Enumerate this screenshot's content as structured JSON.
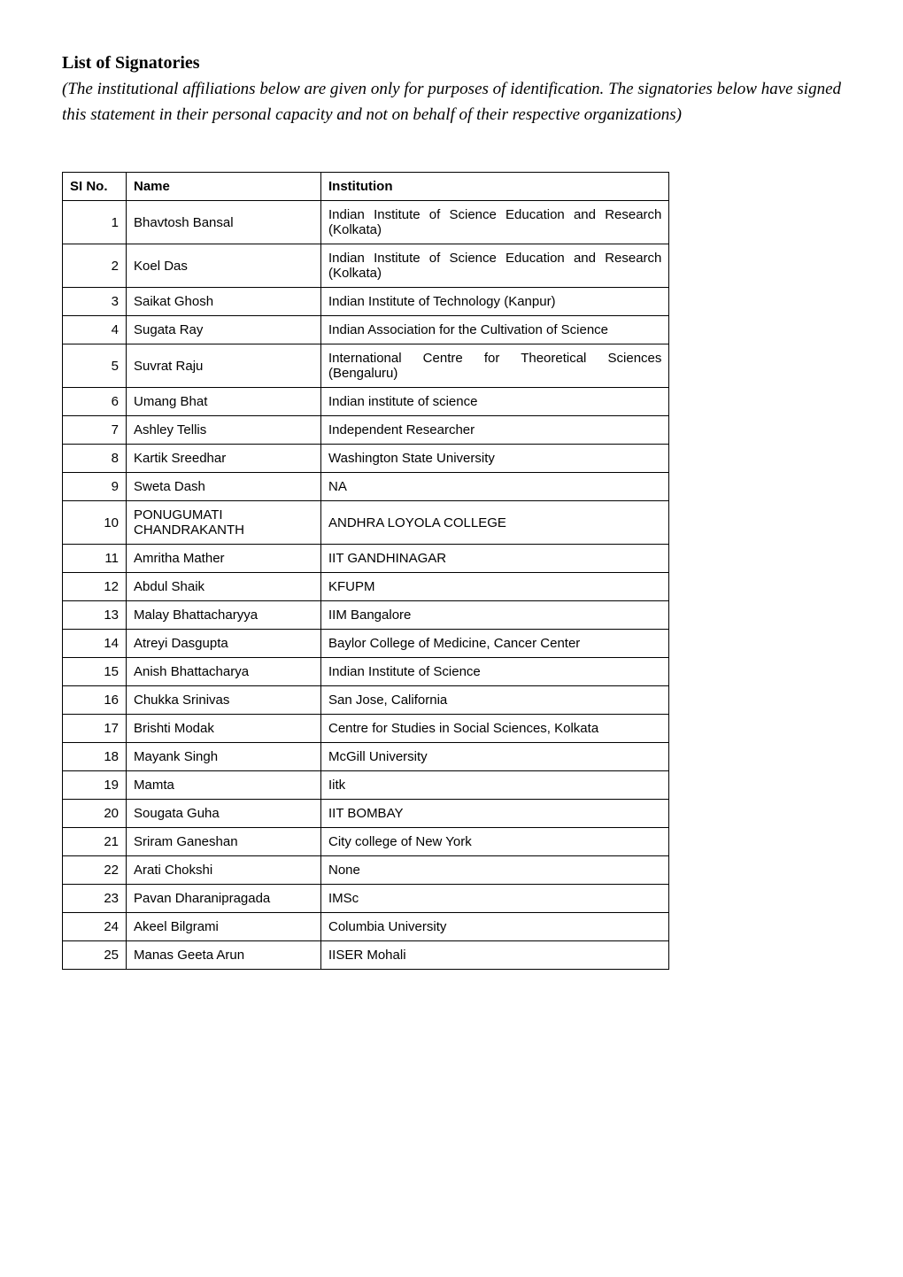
{
  "heading": "List of Signatories",
  "intro": "(The institutional affiliations below are given only for purposes of identification. The signatories below have signed this statement in their personal capacity and not on behalf of their respective organizations)",
  "table": {
    "columns": [
      "SI No.",
      "Name",
      "Institution"
    ],
    "rows": [
      [
        "1",
        "Bhavtosh Bansal",
        "Indian Institute of Science Education and Research (Kolkata)"
      ],
      [
        "2",
        "Koel Das",
        "Indian Institute of Science Education and Research (Kolkata)"
      ],
      [
        "3",
        "Saikat Ghosh",
        "Indian Institute of Technology (Kanpur)"
      ],
      [
        "4",
        "Sugata Ray",
        "Indian Association for the Cultivation of Science"
      ],
      [
        "5",
        "Suvrat Raju",
        "International Centre for Theoretical Sciences (Bengaluru)"
      ],
      [
        "6",
        "Umang Bhat",
        "Indian institute of science"
      ],
      [
        "7",
        "Ashley Tellis",
        "Independent Researcher"
      ],
      [
        "8",
        "Kartik Sreedhar",
        "Washington State University"
      ],
      [
        "9",
        "Sweta Dash",
        "NA"
      ],
      [
        "10",
        "PONUGUMATI CHANDRAKANTH",
        "ANDHRA LOYOLA COLLEGE"
      ],
      [
        "11",
        "Amritha Mather",
        "IIT GANDHINAGAR"
      ],
      [
        "12",
        "Abdul Shaik",
        "KFUPM"
      ],
      [
        "13",
        "Malay Bhattacharyya",
        "IIM Bangalore"
      ],
      [
        "14",
        "Atreyi Dasgupta",
        "Baylor College of Medicine, Cancer Center"
      ],
      [
        "15",
        "Anish Bhattacharya",
        "Indian Institute of Science"
      ],
      [
        "16",
        "Chukka Srinivas",
        "San Jose, California"
      ],
      [
        "17",
        "Brishti Modak",
        "Centre for Studies in Social Sciences, Kolkata"
      ],
      [
        "18",
        "Mayank Singh",
        "McGill University"
      ],
      [
        "19",
        "Mamta",
        "Iitk"
      ],
      [
        "20",
        "Sougata Guha",
        "IIT BOMBAY"
      ],
      [
        "21",
        "Sriram Ganeshan",
        "City college of New York"
      ],
      [
        "22",
        "Arati Chokshi",
        "None"
      ],
      [
        "23",
        "Pavan Dharanipragada",
        "IMSc"
      ],
      [
        "24",
        "Akeel Bilgrami",
        "Columbia University"
      ],
      [
        "25",
        "Manas Geeta Arun",
        "IISER Mohali"
      ]
    ],
    "justify_rows": [
      0,
      1,
      3,
      4,
      16
    ]
  }
}
